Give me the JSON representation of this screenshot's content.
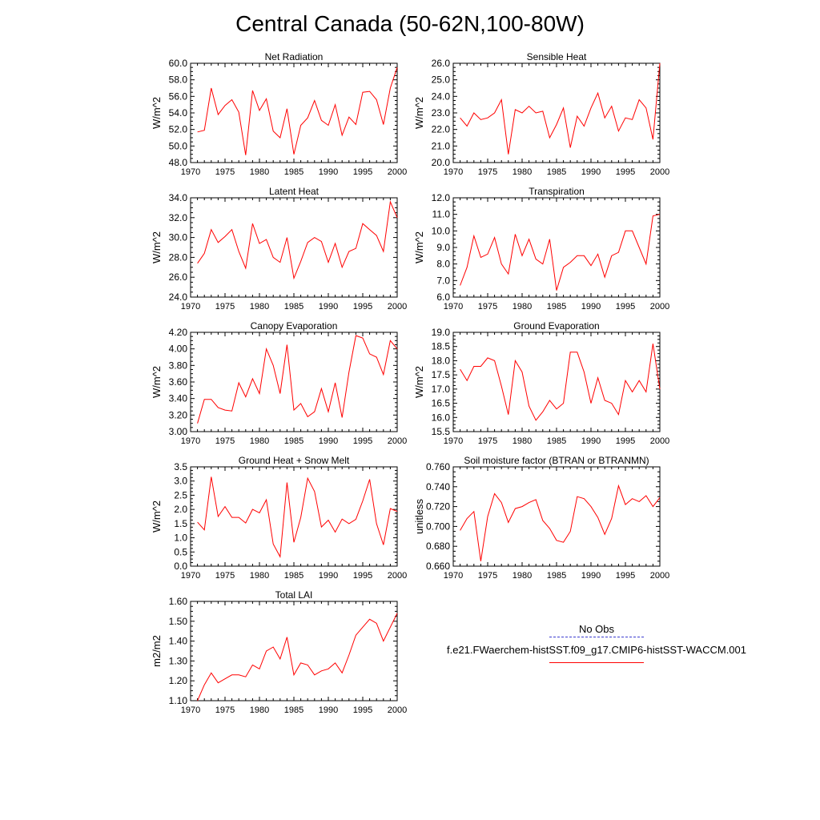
{
  "title": "Central Canada (50-62N,100-80W)",
  "legend": {
    "obs_label": "No Obs",
    "obs_color": "#3b3bd1",
    "model_label": "f.e21.FWaerchem-histSST.f09_g17.CMIP6-histSST-WACCM.001",
    "model_color": "#ff0000"
  },
  "chart_data": [
    {
      "type": "line",
      "title": "Net Radiation",
      "ylabel": "W/m^2",
      "xlim": [
        1970,
        2000
      ],
      "ylim": [
        48.0,
        60.0
      ],
      "xticks": [
        1970,
        1975,
        1980,
        1985,
        1990,
        1995,
        2000
      ],
      "yticks": [
        "48.0",
        "50.0",
        "52.0",
        "54.0",
        "56.0",
        "58.0",
        "60.0"
      ],
      "x": [
        1971,
        1972,
        1973,
        1974,
        1975,
        1976,
        1977,
        1978,
        1979,
        1980,
        1981,
        1982,
        1983,
        1984,
        1985,
        1986,
        1987,
        1988,
        1989,
        1990,
        1991,
        1992,
        1993,
        1994,
        1995,
        1996,
        1997,
        1998,
        1999,
        2000
      ],
      "series": [
        {
          "values": [
            51.7,
            51.9,
            57.0,
            53.8,
            54.9,
            55.6,
            54.1,
            48.9,
            56.7,
            54.3,
            55.7,
            51.8,
            51.0,
            54.5,
            49.0,
            52.5,
            53.4,
            55.5,
            53.1,
            52.5,
            55.0,
            51.3,
            53.5,
            52.6,
            56.5,
            56.6,
            55.6,
            52.6,
            57.0,
            59.5
          ],
          "color": "#ff0000"
        }
      ]
    },
    {
      "type": "line",
      "title": "Sensible Heat",
      "ylabel": "W/m^2",
      "xlim": [
        1970,
        2000
      ],
      "ylim": [
        20.0,
        26.0
      ],
      "xticks": [
        1970,
        1975,
        1980,
        1985,
        1990,
        1995,
        2000
      ],
      "yticks": [
        "20.0",
        "21.0",
        "22.0",
        "23.0",
        "24.0",
        "25.0",
        "26.0"
      ],
      "x": [
        1971,
        1972,
        1973,
        1974,
        1975,
        1976,
        1977,
        1978,
        1979,
        1980,
        1981,
        1982,
        1983,
        1984,
        1985,
        1986,
        1987,
        1988,
        1989,
        1990,
        1991,
        1992,
        1993,
        1994,
        1995,
        1996,
        1997,
        1998,
        1999,
        2000
      ],
      "series": [
        {
          "values": [
            22.7,
            22.2,
            23.0,
            22.6,
            22.7,
            23.0,
            23.8,
            20.5,
            23.2,
            23.0,
            23.4,
            23.0,
            23.1,
            21.5,
            22.3,
            23.3,
            20.9,
            22.8,
            22.2,
            23.3,
            24.2,
            22.7,
            23.4,
            21.9,
            22.7,
            22.6,
            23.8,
            23.3,
            21.4,
            26.0
          ],
          "color": "#ff0000"
        }
      ]
    },
    {
      "type": "line",
      "title": "Latent Heat",
      "ylabel": "W/m^2",
      "xlim": [
        1970,
        2000
      ],
      "ylim": [
        24.0,
        34.0
      ],
      "xticks": [
        1970,
        1975,
        1980,
        1985,
        1990,
        1995,
        2000
      ],
      "yticks": [
        "24.0",
        "26.0",
        "28.0",
        "30.0",
        "32.0",
        "34.0"
      ],
      "x": [
        1971,
        1972,
        1973,
        1974,
        1975,
        1976,
        1977,
        1978,
        1979,
        1980,
        1981,
        1982,
        1983,
        1984,
        1985,
        1986,
        1987,
        1988,
        1989,
        1990,
        1991,
        1992,
        1993,
        1994,
        1995,
        1996,
        1997,
        1998,
        1999,
        2000
      ],
      "series": [
        {
          "values": [
            27.4,
            28.4,
            30.8,
            29.5,
            30.1,
            30.8,
            28.6,
            26.9,
            31.4,
            29.4,
            29.8,
            28.0,
            27.5,
            30.0,
            25.9,
            27.6,
            29.5,
            30.0,
            29.6,
            27.5,
            29.4,
            27.0,
            28.6,
            28.9,
            31.4,
            30.8,
            30.2,
            28.6,
            33.6,
            32.0
          ],
          "color": "#ff0000"
        }
      ]
    },
    {
      "type": "line",
      "title": "Transpiration",
      "ylabel": "W/m^2",
      "xlim": [
        1970,
        2000
      ],
      "ylim": [
        6.0,
        12.0
      ],
      "xticks": [
        1970,
        1975,
        1980,
        1985,
        1990,
        1995,
        2000
      ],
      "yticks": [
        "6.0",
        "7.0",
        "8.0",
        "9.0",
        "10.0",
        "11.0",
        "12.0"
      ],
      "x": [
        1971,
        1972,
        1973,
        1974,
        1975,
        1976,
        1977,
        1978,
        1979,
        1980,
        1981,
        1982,
        1983,
        1984,
        1985,
        1986,
        1987,
        1988,
        1989,
        1990,
        1991,
        1992,
        1993,
        1994,
        1995,
        1996,
        1997,
        1998,
        1999,
        2000
      ],
      "series": [
        {
          "values": [
            6.7,
            7.8,
            9.7,
            8.4,
            8.6,
            9.6,
            8.0,
            7.4,
            9.8,
            8.5,
            9.5,
            8.3,
            8.0,
            9.5,
            6.4,
            7.8,
            8.1,
            8.5,
            8.5,
            7.9,
            8.6,
            7.2,
            8.5,
            8.7,
            10.0,
            10.0,
            9.0,
            8.0,
            10.9,
            11.0
          ],
          "color": "#ff0000"
        }
      ]
    },
    {
      "type": "line",
      "title": "Canopy Evaporation",
      "ylabel": "W/m^2",
      "xlim": [
        1970,
        2000
      ],
      "ylim": [
        3.0,
        4.2
      ],
      "xticks": [
        1970,
        1975,
        1980,
        1985,
        1990,
        1995,
        2000
      ],
      "yticks": [
        "3.00",
        "3.20",
        "3.40",
        "3.60",
        "3.80",
        "4.00",
        "4.20"
      ],
      "x": [
        1971,
        1972,
        1973,
        1974,
        1975,
        1976,
        1977,
        1978,
        1979,
        1980,
        1981,
        1982,
        1983,
        1984,
        1985,
        1986,
        1987,
        1988,
        1989,
        1990,
        1991,
        1992,
        1993,
        1994,
        1995,
        1996,
        1997,
        1998,
        1999,
        2000
      ],
      "series": [
        {
          "values": [
            3.1,
            3.39,
            3.39,
            3.29,
            3.26,
            3.25,
            3.59,
            3.42,
            3.64,
            3.46,
            4.0,
            3.8,
            3.46,
            4.05,
            3.26,
            3.34,
            3.18,
            3.24,
            3.52,
            3.24,
            3.59,
            3.17,
            3.72,
            4.16,
            4.13,
            3.94,
            3.9,
            3.69,
            4.1,
            4.0
          ],
          "color": "#ff0000"
        }
      ]
    },
    {
      "type": "line",
      "title": "Ground Evaporation",
      "ylabel": "W/m^2",
      "xlim": [
        1970,
        2000
      ],
      "ylim": [
        15.5,
        19.0
      ],
      "xticks": [
        1970,
        1975,
        1980,
        1985,
        1990,
        1995,
        2000
      ],
      "yticks": [
        "15.5",
        "16.0",
        "16.5",
        "17.0",
        "17.5",
        "18.0",
        "18.5",
        "19.0"
      ],
      "x": [
        1971,
        1972,
        1973,
        1974,
        1975,
        1976,
        1977,
        1978,
        1979,
        1980,
        1981,
        1982,
        1983,
        1984,
        1985,
        1986,
        1987,
        1988,
        1989,
        1990,
        1991,
        1992,
        1993,
        1994,
        1995,
        1996,
        1997,
        1998,
        1999,
        2000
      ],
      "series": [
        {
          "values": [
            17.7,
            17.3,
            17.8,
            17.8,
            18.1,
            18.0,
            17.1,
            16.1,
            18.0,
            17.6,
            16.4,
            15.9,
            16.2,
            16.6,
            16.3,
            16.5,
            18.3,
            18.3,
            17.6,
            16.5,
            17.4,
            16.6,
            16.5,
            16.1,
            17.3,
            16.9,
            17.3,
            16.9,
            18.6,
            17.0
          ],
          "color": "#ff0000"
        }
      ]
    },
    {
      "type": "line",
      "title": "Ground Heat + Snow Melt",
      "ylabel": "W/m^2",
      "xlim": [
        1970,
        2000
      ],
      "ylim": [
        0.0,
        3.5
      ],
      "xticks": [
        1970,
        1975,
        1980,
        1985,
        1990,
        1995,
        2000
      ],
      "yticks": [
        "0.0",
        "0.5",
        "1.0",
        "1.5",
        "2.0",
        "2.5",
        "3.0",
        "3.5"
      ],
      "x": [
        1971,
        1972,
        1973,
        1974,
        1975,
        1976,
        1977,
        1978,
        1979,
        1980,
        1981,
        1982,
        1983,
        1984,
        1985,
        1986,
        1987,
        1988,
        1989,
        1990,
        1991,
        1992,
        1993,
        1994,
        1995,
        1996,
        1997,
        1998,
        1999,
        2000
      ],
      "series": [
        {
          "values": [
            1.55,
            1.28,
            3.15,
            1.75,
            2.1,
            1.72,
            1.72,
            1.52,
            2.0,
            1.88,
            2.34,
            0.78,
            0.33,
            2.95,
            0.84,
            1.72,
            3.1,
            2.63,
            1.38,
            1.62,
            1.2,
            1.66,
            1.5,
            1.65,
            2.3,
            3.06,
            1.5,
            0.75,
            2.03,
            1.93
          ],
          "color": "#ff0000"
        }
      ]
    },
    {
      "type": "line",
      "title": "Soil moisture factor (BTRAN or BTRANMN)",
      "ylabel": "unitless",
      "xlim": [
        1970,
        2000
      ],
      "ylim": [
        0.66,
        0.76
      ],
      "xticks": [
        1970,
        1975,
        1980,
        1985,
        1990,
        1995,
        2000
      ],
      "yticks": [
        "0.660",
        "0.680",
        "0.700",
        "0.720",
        "0.740",
        "0.760"
      ],
      "x": [
        1971,
        1972,
        1973,
        1974,
        1975,
        1976,
        1977,
        1978,
        1979,
        1980,
        1981,
        1982,
        1983,
        1984,
        1985,
        1986,
        1987,
        1988,
        1989,
        1990,
        1991,
        1992,
        1993,
        1994,
        1995,
        1996,
        1997,
        1998,
        1999,
        2000
      ],
      "series": [
        {
          "values": [
            0.696,
            0.708,
            0.715,
            0.665,
            0.71,
            0.733,
            0.724,
            0.704,
            0.718,
            0.72,
            0.724,
            0.727,
            0.706,
            0.698,
            0.686,
            0.684,
            0.695,
            0.73,
            0.728,
            0.72,
            0.709,
            0.692,
            0.708,
            0.741,
            0.722,
            0.728,
            0.725,
            0.731,
            0.72,
            0.729
          ],
          "color": "#ff0000"
        }
      ]
    },
    {
      "type": "line",
      "title": "Total LAI",
      "ylabel": "m2/m2",
      "xlim": [
        1970,
        2000
      ],
      "ylim": [
        1.1,
        1.6
      ],
      "xticks": [
        1970,
        1975,
        1980,
        1985,
        1990,
        1995,
        2000
      ],
      "yticks": [
        "1.10",
        "1.20",
        "1.30",
        "1.40",
        "1.50",
        "1.60"
      ],
      "x": [
        1971,
        1972,
        1973,
        1974,
        1975,
        1976,
        1977,
        1978,
        1979,
        1980,
        1981,
        1982,
        1983,
        1984,
        1985,
        1986,
        1987,
        1988,
        1989,
        1990,
        1991,
        1992,
        1993,
        1994,
        1995,
        1996,
        1997,
        1998,
        1999,
        2000
      ],
      "series": [
        {
          "values": [
            1.1,
            1.18,
            1.24,
            1.19,
            1.21,
            1.23,
            1.23,
            1.22,
            1.28,
            1.26,
            1.35,
            1.37,
            1.31,
            1.42,
            1.23,
            1.29,
            1.28,
            1.23,
            1.25,
            1.26,
            1.29,
            1.24,
            1.33,
            1.43,
            1.47,
            1.51,
            1.49,
            1.4,
            1.47,
            1.54
          ],
          "color": "#ff0000"
        }
      ]
    }
  ]
}
